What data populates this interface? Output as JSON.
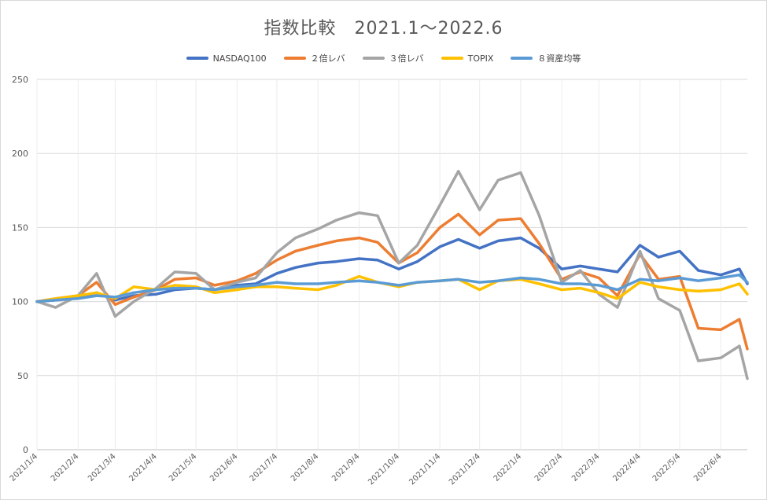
{
  "chart_data": {
    "type": "line",
    "title": "指数比較　2021.1～2022.6",
    "xlabel": "",
    "ylabel": "",
    "ylim": [
      0,
      250
    ],
    "yticks": [
      0,
      50,
      100,
      150,
      200,
      250
    ],
    "grid": true,
    "legend_position": "top",
    "x_tick_labels": [
      "2021/1/4",
      "2021/2/4",
      "2021/3/4",
      "2021/4/4",
      "2021/5/4",
      "2021/6/4",
      "2021/7/4",
      "2021/8/4",
      "2021/9/4",
      "2021/10/4",
      "2021/11/4",
      "2021/12/4",
      "2022/1/4",
      "2022/2/4",
      "2022/3/4",
      "2022/4/4",
      "2022/5/4",
      "2022/6/4"
    ],
    "x": [
      "2021/1/4",
      "2021/1/18",
      "2021/2/4",
      "2021/2/18",
      "2021/3/4",
      "2021/3/18",
      "2021/4/4",
      "2021/4/18",
      "2021/5/4",
      "2021/5/18",
      "2021/6/4",
      "2021/6/18",
      "2021/7/4",
      "2021/7/18",
      "2021/8/4",
      "2021/8/18",
      "2021/9/4",
      "2021/9/18",
      "2021/10/4",
      "2021/10/18",
      "2021/11/4",
      "2021/11/18",
      "2021/12/4",
      "2021/12/18",
      "2022/1/4",
      "2022/1/18",
      "2022/2/4",
      "2022/2/18",
      "2022/3/4",
      "2022/3/18",
      "2022/4/4",
      "2022/4/18",
      "2022/5/4",
      "2022/5/18",
      "2022/6/4",
      "2022/6/18",
      "2022/6/24"
    ],
    "series": [
      {
        "name": "NASDAQ100",
        "color": "#4472c4",
        "values": [
          100,
          101,
          103,
          106,
          101,
          104,
          105,
          108,
          109,
          108,
          111,
          112,
          119,
          123,
          126,
          127,
          129,
          128,
          122,
          127,
          137,
          142,
          136,
          141,
          143,
          136,
          122,
          124,
          122,
          120,
          138,
          130,
          134,
          121,
          118,
          122,
          112
        ]
      },
      {
        "name": "２倍レバ",
        "color": "#ed7d31",
        "values": [
          100,
          102,
          104,
          113,
          98,
          103,
          108,
          115,
          116,
          111,
          114,
          119,
          128,
          134,
          138,
          141,
          143,
          140,
          126,
          133,
          150,
          159,
          145,
          155,
          156,
          139,
          115,
          120,
          116,
          104,
          132,
          115,
          117,
          82,
          81,
          88,
          68
        ]
      },
      {
        "name": "３倍レバ",
        "color": "#a5a5a5",
        "values": [
          100,
          96,
          104,
          119,
          90,
          100,
          109,
          120,
          119,
          108,
          113,
          116,
          133,
          143,
          149,
          155,
          160,
          158,
          126,
          138,
          165,
          188,
          162,
          182,
          187,
          158,
          113,
          121,
          105,
          96,
          134,
          102,
          94,
          60,
          62,
          70,
          48
        ]
      },
      {
        "name": "TOPIX",
        "color": "#ffc000",
        "values": [
          100,
          102,
          104,
          106,
          102,
          110,
          108,
          111,
          110,
          106,
          108,
          110,
          110,
          109,
          108,
          111,
          117,
          113,
          110,
          113,
          114,
          115,
          108,
          114,
          115,
          112,
          108,
          109,
          106,
          102,
          113,
          110,
          108,
          107,
          108,
          112,
          105
        ]
      },
      {
        "name": "８資産均等",
        "color": "#5b9bd5",
        "values": [
          100,
          101,
          102,
          104,
          103,
          106,
          108,
          109,
          109,
          108,
          110,
          111,
          113,
          112,
          112,
          113,
          114,
          113,
          111,
          113,
          114,
          115,
          113,
          114,
          116,
          115,
          112,
          112,
          111,
          108,
          115,
          114,
          116,
          114,
          116,
          118,
          113
        ]
      }
    ]
  }
}
